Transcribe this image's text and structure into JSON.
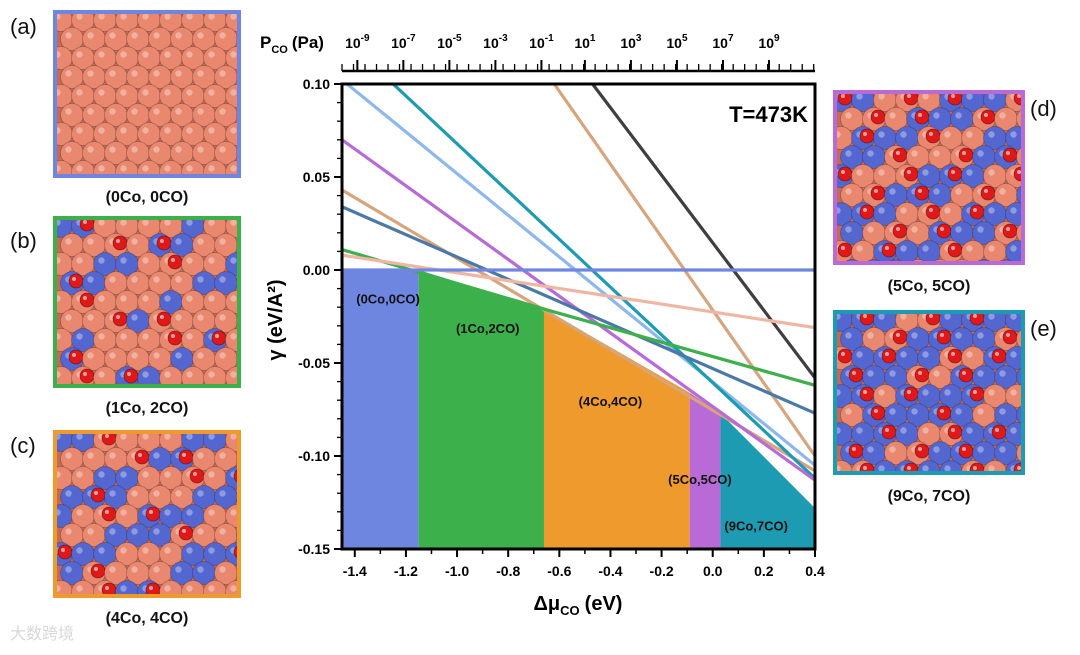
{
  "panels": [
    {
      "letter": "(a)",
      "caption": "(0Co, 0CO)",
      "border": "#6f86e0",
      "co_count": 0
    },
    {
      "letter": "(b)",
      "caption": "(1Co, 2CO)",
      "border": "#3bb04b",
      "co_count": 1
    },
    {
      "letter": "(c)",
      "caption": "(4Co, 4CO)",
      "border": "#ee9a2c",
      "co_count": 4
    },
    {
      "letter": "(d)",
      "caption": "(5Co, 5CO)",
      "border": "#b86ad6",
      "co_count": 5
    },
    {
      "letter": "(e)",
      "caption": "(9Co, 7CO)",
      "border": "#1d9bb2",
      "co_count": 9
    }
  ],
  "colors": {
    "cu": "#e9876f",
    "co": "#5466d0",
    "o": "#e01818"
  },
  "watermark": "大数跨境",
  "chart_data": {
    "type": "area",
    "annotation": "T=473K",
    "xlabel": "Δμ",
    "xlabel_sub": "CO",
    "xlabel_unit": "(eV)",
    "ylabel": "γ (eV/A²)",
    "top_axis_label": "P",
    "top_axis_sub": "CO",
    "top_axis_unit": "(Pa)",
    "xlim": [
      -1.45,
      0.4
    ],
    "ylim": [
      -0.15,
      0.1
    ],
    "x_ticks": [
      -1.4,
      -1.2,
      -1.0,
      -0.8,
      -0.6,
      -0.4,
      -0.2,
      0.0,
      0.2,
      0.4
    ],
    "x_tick_labels": [
      "-1.4",
      "-1.2",
      "-1.0",
      "-0.8",
      "-0.6",
      "-0.4",
      "-0.2",
      "0.0",
      "0.2",
      "0.4"
    ],
    "y_ticks": [
      0.1,
      0.05,
      0.0,
      -0.05,
      -0.1,
      -0.15
    ],
    "y_tick_labels": [
      "0.10",
      "0.05",
      "0.00",
      "-0.05",
      "-0.10",
      "-0.15"
    ],
    "top_ticks": [
      {
        "x": -1.39,
        "base": "10",
        "exp": "-9"
      },
      {
        "x": -1.21,
        "base": "10",
        "exp": "-7"
      },
      {
        "x": -1.03,
        "base": "10",
        "exp": "-5"
      },
      {
        "x": -0.85,
        "base": "10",
        "exp": "-3"
      },
      {
        "x": -0.67,
        "base": "10",
        "exp": "-1"
      },
      {
        "x": -0.5,
        "base": "10",
        "exp": "1"
      },
      {
        "x": -0.32,
        "base": "10",
        "exp": "3"
      },
      {
        "x": -0.14,
        "base": "10",
        "exp": "5"
      },
      {
        "x": 0.04,
        "base": "10",
        "exp": "7"
      },
      {
        "x": 0.22,
        "base": "10",
        "exp": "9"
      }
    ],
    "regions": [
      {
        "label": "(0Co,0CO)",
        "color": "#6f86e0",
        "x0": -1.45,
        "x1": -1.15,
        "top": [
          [
            -1.45,
            0.0
          ],
          [
            -1.15,
            0.0
          ]
        ],
        "label_x": -1.27,
        "label_y": -0.018
      },
      {
        "label": "(1Co,2CO)",
        "color": "#3bb04b",
        "x0": -1.15,
        "x1": -0.66,
        "top": [
          [
            -1.15,
            0.0
          ],
          [
            -0.66,
            -0.021
          ]
        ],
        "label_x": -0.88,
        "label_y": -0.034
      },
      {
        "label": "(4Co,4CO)",
        "color": "#ee9a2c",
        "x0": -0.66,
        "x1": -0.09,
        "top": [
          [
            -0.66,
            -0.021
          ],
          [
            -0.09,
            -0.066
          ]
        ],
        "label_x": -0.4,
        "label_y": -0.073
      },
      {
        "label": "(5Co,5CO)",
        "color": "#b86ad6",
        "x0": -0.09,
        "x1": 0.03,
        "top": [
          [
            -0.09,
            -0.066
          ],
          [
            0.03,
            -0.077
          ]
        ],
        "label_x": -0.05,
        "label_y": -0.115
      },
      {
        "label": "(9Co,7CO)",
        "color": "#1d9bb2",
        "x0": 0.03,
        "x1": 0.4,
        "top": [
          [
            0.03,
            -0.077
          ],
          [
            0.4,
            -0.128
          ]
        ],
        "label_x": 0.17,
        "label_y": -0.14
      }
    ],
    "series": [
      {
        "name": "black",
        "color": "#3f3f3f",
        "points": [
          [
            -0.47,
            0.1
          ],
          [
            0.4,
            -0.058
          ]
        ]
      },
      {
        "name": "tan-1",
        "color": "#d8a47c",
        "points": [
          [
            -0.62,
            0.1
          ],
          [
            0.4,
            -0.1
          ]
        ]
      },
      {
        "name": "tan-2",
        "color": "#d8a47c",
        "points": [
          [
            -1.45,
            0.043
          ],
          [
            0.4,
            -0.108
          ]
        ]
      },
      {
        "name": "light-blue",
        "color": "#8db8ee",
        "points": [
          [
            -1.43,
            0.1
          ],
          [
            0.4,
            -0.105
          ]
        ]
      },
      {
        "name": "teal",
        "color": "#1d9bb2",
        "points": [
          [
            -1.25,
            0.1
          ],
          [
            0.4,
            -0.112
          ]
        ]
      },
      {
        "name": "purple",
        "color": "#b86ad6",
        "points": [
          [
            -1.45,
            0.07
          ],
          [
            0.4,
            -0.113
          ]
        ]
      },
      {
        "name": "steel-blue",
        "color": "#4a79a8",
        "points": [
          [
            -1.45,
            0.034
          ],
          [
            0.4,
            -0.077
          ]
        ]
      },
      {
        "name": "green",
        "color": "#3bb04b",
        "points": [
          [
            -1.45,
            0.011
          ],
          [
            -0.66,
            -0.021
          ],
          [
            0.4,
            -0.062
          ]
        ]
      },
      {
        "name": "pink",
        "color": "#f0b6a4",
        "points": [
          [
            -1.45,
            0.008
          ],
          [
            0.4,
            -0.031
          ]
        ]
      },
      {
        "name": "blue-flat",
        "color": "#6f86e0",
        "points": [
          [
            -1.45,
            0.0
          ],
          [
            0.4,
            0.0
          ]
        ]
      }
    ]
  }
}
